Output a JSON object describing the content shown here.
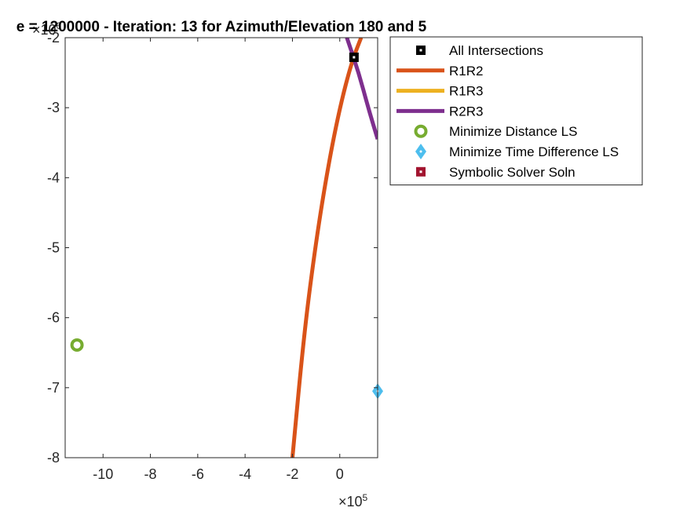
{
  "chart_data": {
    "type": "line",
    "title": "e = 1200000 - Iteration: 13 for Azimuth/Elevation 180 and 5",
    "xlabel": "",
    "ylabel": "",
    "x_exponent_label": "×10",
    "x_exponent_power": "5",
    "y_exponent_label": "×10",
    "y_exponent_power": "6",
    "xlim": [
      -1160000,
      160000
    ],
    "ylim": [
      -8000000,
      -2000000
    ],
    "x_ticks": [
      -1000000,
      -800000,
      -600000,
      -400000,
      -200000,
      0
    ],
    "x_tick_labels": [
      "-10",
      "-8",
      "-6",
      "-4",
      "-2",
      "0"
    ],
    "y_ticks": [
      -2000000,
      -3000000,
      -4000000,
      -5000000,
      -6000000,
      -7000000,
      -8000000
    ],
    "y_tick_labels": [
      "-2",
      "-3",
      "-4",
      "-5",
      "-6",
      "-7",
      "-8"
    ],
    "grid": false,
    "legend_position": "outside-top-right",
    "series": [
      {
        "name": "All Intersections",
        "kind": "marker",
        "marker": "square",
        "color": "#000000",
        "x": [
          60000
        ],
        "y": [
          -2280000
        ]
      },
      {
        "name": "R1R2",
        "kind": "line",
        "color": "#D95319",
        "x": [
          -200000,
          -150000,
          -100000,
          -50000,
          0,
          50000,
          90000
        ],
        "y": [
          -8000000,
          -6200000,
          -4900000,
          -3850000,
          -3000000,
          -2350000,
          -2000000
        ]
      },
      {
        "name": "R1R3",
        "kind": "line",
        "color": "#EDB120",
        "x": [],
        "y": []
      },
      {
        "name": "R2R3",
        "kind": "line",
        "color": "#7E2F8E",
        "x": [
          30000,
          80000,
          120000,
          160000
        ],
        "y": [
          -2000000,
          -2500000,
          -3000000,
          -3450000
        ]
      },
      {
        "name": "Minimize Distance LS",
        "kind": "marker",
        "marker": "circle",
        "color": "#77AC30",
        "x": [
          -1110000
        ],
        "y": [
          -6390000
        ]
      },
      {
        "name": "Minimize Time Difference LS",
        "kind": "marker",
        "marker": "diamond",
        "color": "#4DBEEE",
        "x": [
          160000
        ],
        "y": [
          -7050000
        ]
      },
      {
        "name": "Symbolic Solver Soln",
        "kind": "marker",
        "marker": "square",
        "color": "#A2142F",
        "x": [],
        "y": []
      }
    ]
  }
}
